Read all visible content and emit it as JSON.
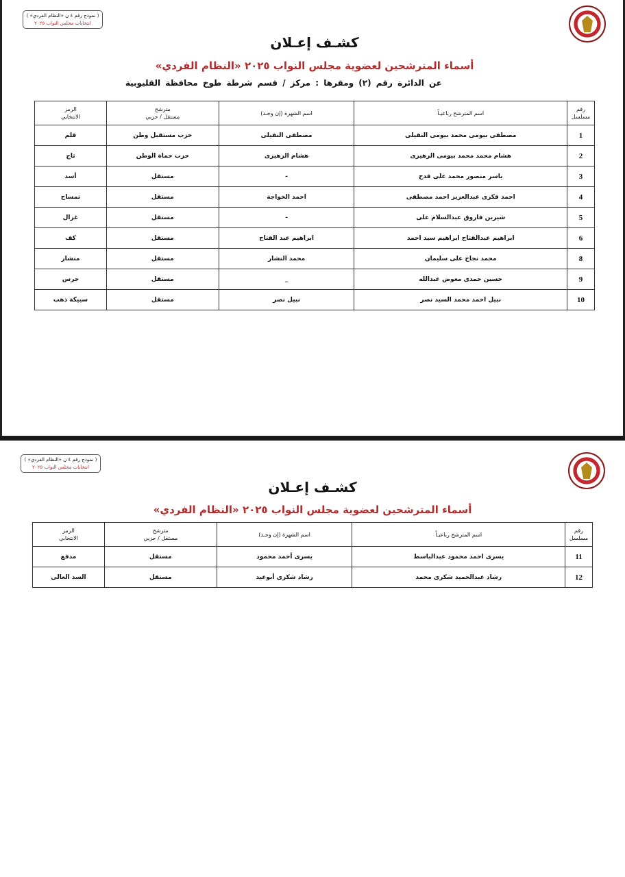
{
  "form_label": {
    "line1": "( نموذج رقم ٤ ن «النظام الفردي» )",
    "line2": "انتخابات مجلس النواب ٢٠٢٥"
  },
  "logo": "national-elections-authority-emblem",
  "title": "كشـف إعـلان",
  "subtitle": "أسماء المترشحين لعضوية مجلس النواب ٢٠٢٥ «النظام الفردي»",
  "district": "عن الدائرة رقم (٢) ومقرها : مركز / قسم شرطة طوخ محافظة القليوبية",
  "colors": {
    "subtitle": "#b22a2a"
  },
  "headers": {
    "serial_1": "رقم",
    "serial_2": "مسلسل",
    "name": "اسم المترشح رباعيـاً",
    "nickname": "اسم الشهرة (إن وجـد)",
    "type_1": "مترشح",
    "type_2": "مستقل / حزبي",
    "symbol_1": "الرمز",
    "symbol_2": "الانتخابي"
  },
  "page1_rows": [
    {
      "n": "1",
      "name": "مصطفى بيومى محمد بيومى النفيلى",
      "nick": "مصطفى النفيلى",
      "type": "حزب مستقبل وطن",
      "symbol": "قلم"
    },
    {
      "n": "2",
      "name": "هشام محمد محمد بيومى الزهيرى",
      "nick": "هشام الزهيرى",
      "type": "حزب حماة الوطن",
      "symbol": "تاج"
    },
    {
      "n": "3",
      "name": "ياسر منصور محمد على قدح",
      "nick": "-",
      "type": "مستقل",
      "symbol": "أسد"
    },
    {
      "n": "4",
      "name": "احمد فكرى عبدالعزيز احمد مصطفى",
      "nick": "احمد الخواجة",
      "type": "مستقل",
      "symbol": "تمساح"
    },
    {
      "n": "5",
      "name": "شيرين فاروق عبدالسلام على",
      "nick": "-",
      "type": "مستقل",
      "symbol": "غزال"
    },
    {
      "n": "6",
      "name": "ابراهيم عبدالفتاح ابراهيم سيد احمد",
      "nick": "ابراهيم عبد الفتاح",
      "type": "مستقل",
      "symbol": "كف"
    },
    {
      "n": "8",
      "name": "محمد نجاح على سليمان",
      "nick": "محمد النشار",
      "type": "مستقل",
      "symbol": "منشار"
    },
    {
      "n": "9",
      "name": "حسين حمدى معوض عبدالله",
      "nick": "_",
      "type": "مستقل",
      "symbol": "جرس"
    },
    {
      "n": "10",
      "name": "نبيل احمد محمد السيد نصر",
      "nick": "نبيل نصر",
      "type": "مستقل",
      "symbol": "سبيكة ذهب"
    }
  ],
  "page2_rows": [
    {
      "n": "11",
      "name": "يسرى احمد محمود عبدالباسط",
      "nick": "يسرى أحمد محمود",
      "type": "مستقل",
      "symbol": "مدفع"
    },
    {
      "n": "12",
      "name": "رشاد عبدالحميد شكرى محمد",
      "nick": "رشاد شكرى أبوعيد",
      "type": "مستقل",
      "symbol": "السد العالى"
    }
  ]
}
